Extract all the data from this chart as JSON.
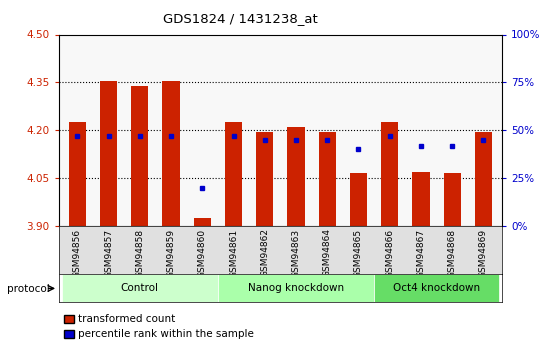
{
  "title": "GDS1824 / 1431238_at",
  "samples": [
    "GSM94856",
    "GSM94857",
    "GSM94858",
    "GSM94859",
    "GSM94860",
    "GSM94861",
    "GSM94862",
    "GSM94863",
    "GSM94864",
    "GSM94865",
    "GSM94866",
    "GSM94867",
    "GSM94868",
    "GSM94869"
  ],
  "transformed_count": [
    4.225,
    4.355,
    4.34,
    4.355,
    3.925,
    4.225,
    4.195,
    4.21,
    4.195,
    4.065,
    4.225,
    4.07,
    4.065,
    4.195
  ],
  "percentile_rank": [
    47,
    47,
    47,
    47,
    20,
    47,
    45,
    45,
    45,
    40,
    47,
    42,
    42,
    45
  ],
  "bar_bottom": 3.9,
  "ylim_left": [
    3.9,
    4.5
  ],
  "ylim_right": [
    0,
    100
  ],
  "yticks_left": [
    3.9,
    4.05,
    4.2,
    4.35,
    4.5
  ],
  "yticks_right": [
    0,
    25,
    50,
    75,
    100
  ],
  "groups": [
    {
      "label": "Control",
      "start": 0,
      "end": 5,
      "color": "#ccffcc"
    },
    {
      "label": "Nanog knockdown",
      "start": 5,
      "end": 10,
      "color": "#aaffaa"
    },
    {
      "label": "Oct4 knockdown",
      "start": 10,
      "end": 14,
      "color": "#66dd66"
    }
  ],
  "bar_color": "#cc2200",
  "dot_color": "#0000cc",
  "axis_left_color": "#cc2200",
  "axis_right_color": "#0000cc",
  "plot_bg_color": "#f8f8f8",
  "protocol_label": "protocol",
  "legend_items": [
    {
      "label": "transformed count",
      "color": "#cc2200"
    },
    {
      "label": "percentile rank within the sample",
      "color": "#0000cc"
    }
  ]
}
